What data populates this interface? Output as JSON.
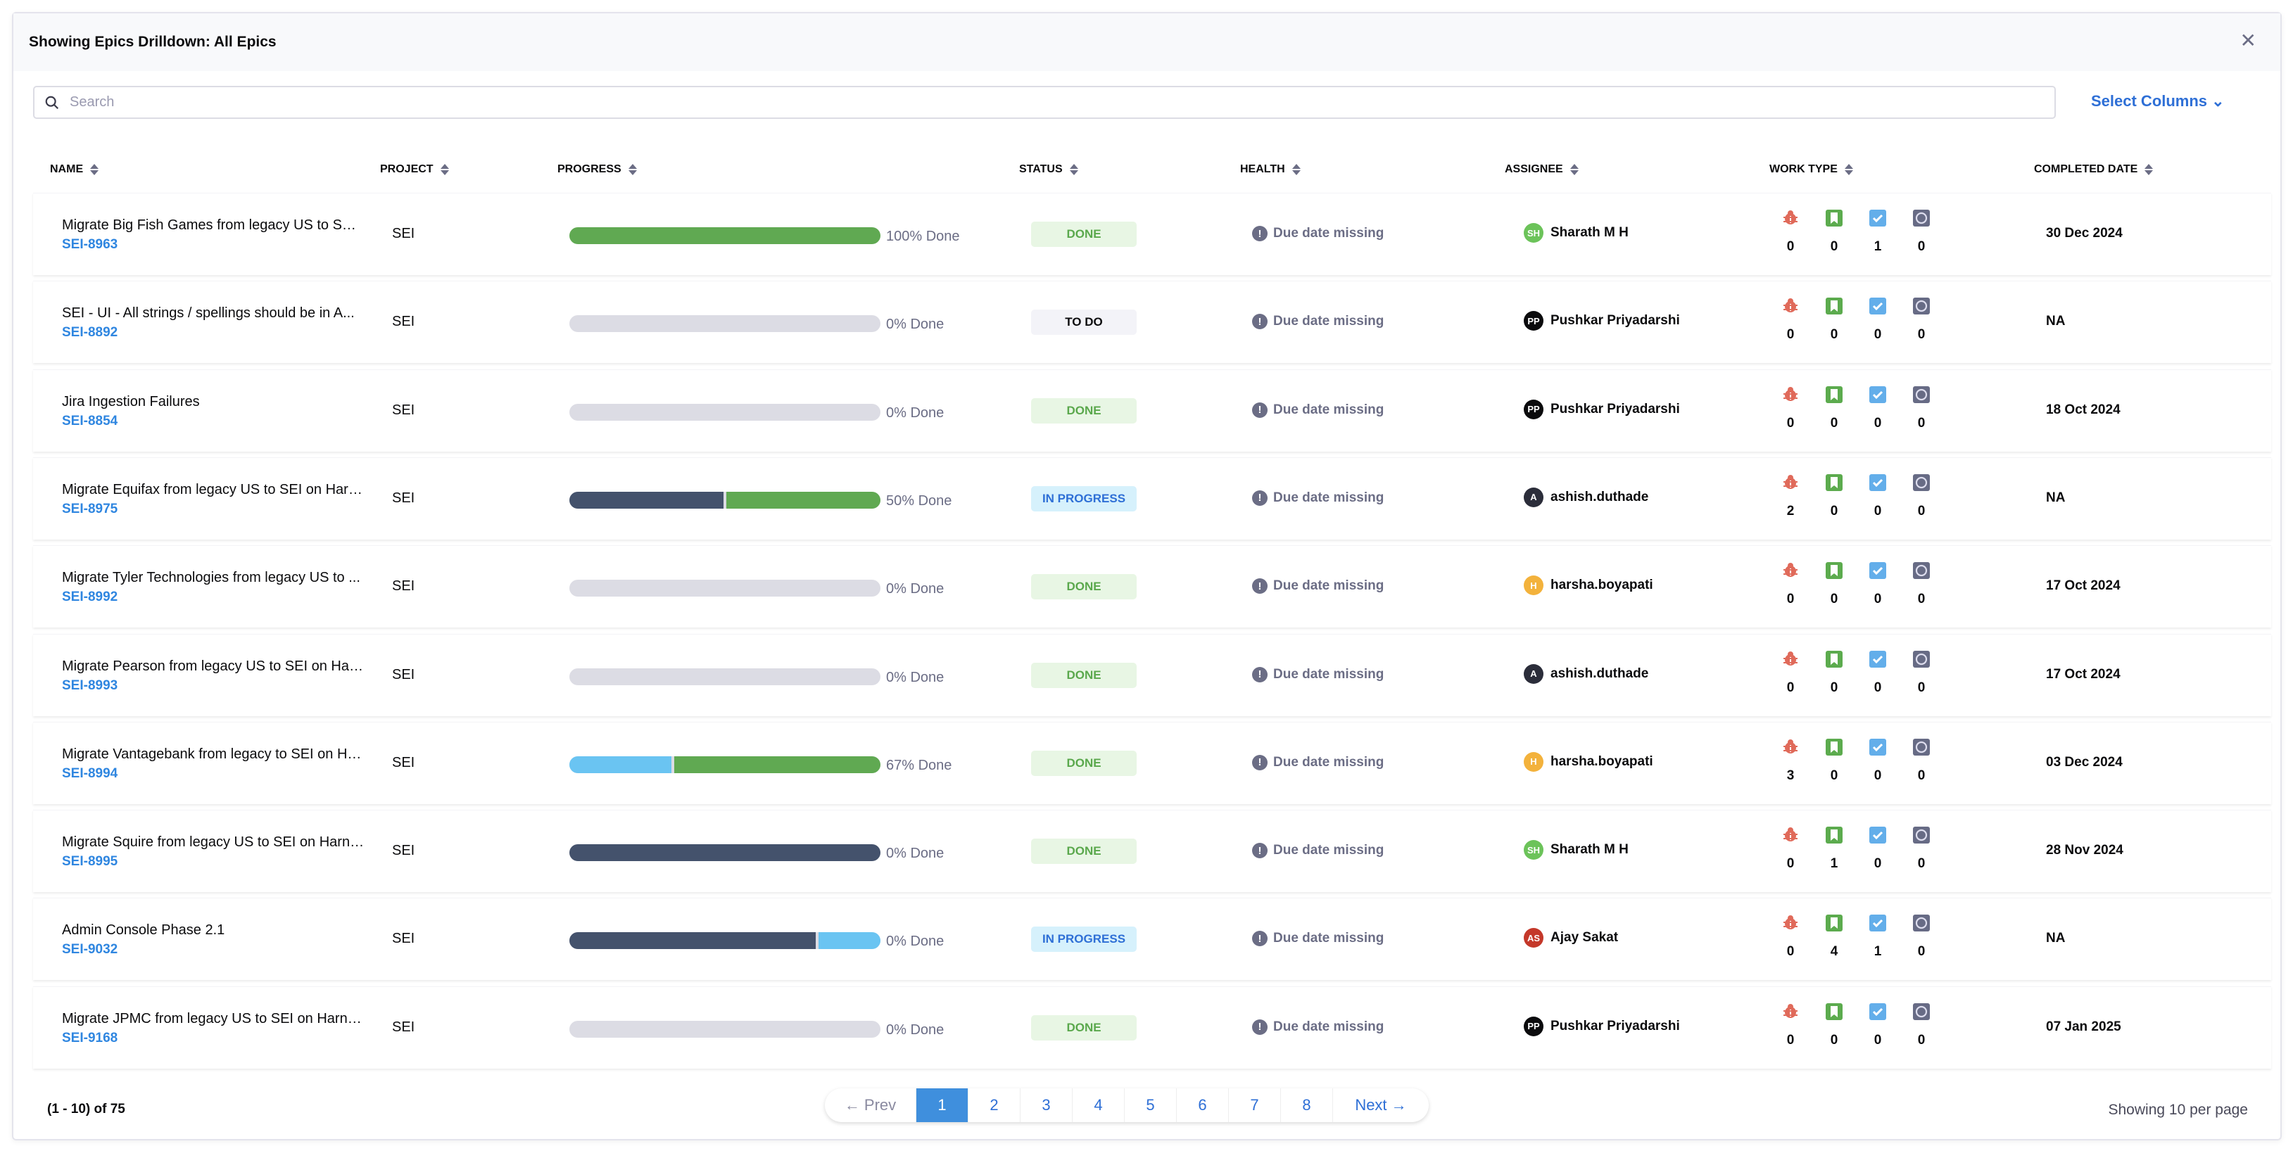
{
  "title": "Showing Epics Drilldown: All Epics",
  "search": {
    "placeholder": "Search",
    "value": ""
  },
  "select_columns": "Select Columns",
  "columns": [
    "NAME",
    "PROJECT",
    "PROGRESS",
    "STATUS",
    "HEALTH",
    "ASSIGNEE",
    "WORK TYPE",
    "COMPLETED DATE"
  ],
  "colors": {
    "done_fill": "#60a952",
    "in_progress_fill": "#6ac4f2",
    "todo_fill": "#44526c",
    "empty": "#dcdce4",
    "link": "#2f86e0",
    "accent": "#3f8fdd"
  },
  "work_type_icons": [
    "bug-icon",
    "story-icon",
    "task-icon",
    "subtask-icon"
  ],
  "rows": [
    {
      "name": "Migrate Big Fish Games from legacy US to SEI ...",
      "key": "SEI-8963",
      "project": "SEI",
      "progress": {
        "todo": 0,
        "in_progress": 0,
        "done": 100
      },
      "progress_label": "100% Done",
      "status": "DONE",
      "health": "Due date missing",
      "assignee": {
        "initials": "SH",
        "name": "Sharath M H",
        "color": "#6cc35a"
      },
      "work_type": [
        "0",
        "0",
        "1",
        "0"
      ],
      "completed": "30 Dec 2024"
    },
    {
      "name": "SEI - UI - All strings / spellings should be in A...",
      "key": "SEI-8892",
      "project": "SEI",
      "progress": {
        "todo": 0,
        "in_progress": 0,
        "done": 0
      },
      "progress_label": "0% Done",
      "status": "TO DO",
      "health": "Due date missing",
      "assignee": {
        "initials": "PP",
        "name": "Pushkar Priyadarshi",
        "color": "#0b0b0d"
      },
      "work_type": [
        "0",
        "0",
        "0",
        "0"
      ],
      "completed": "NA"
    },
    {
      "name": "Jira Ingestion Failures",
      "key": "SEI-8854",
      "project": "SEI",
      "progress": {
        "todo": 0,
        "in_progress": 0,
        "done": 0
      },
      "progress_label": "0% Done",
      "status": "DONE",
      "health": "Due date missing",
      "assignee": {
        "initials": "PP",
        "name": "Pushkar Priyadarshi",
        "color": "#0b0b0d"
      },
      "work_type": [
        "0",
        "0",
        "0",
        "0"
      ],
      "completed": "18 Oct 2024"
    },
    {
      "name": "Migrate Equifax from legacy US to SEI on Harn...",
      "key": "SEI-8975",
      "project": "SEI",
      "progress": {
        "todo": 50,
        "in_progress": 0,
        "done": 50
      },
      "progress_label": "50% Done",
      "status": "IN PROGRESS",
      "health": "Due date missing",
      "assignee": {
        "initials": "A",
        "name": "ashish.duthade",
        "color": "#2b2d3a"
      },
      "work_type": [
        "2",
        "0",
        "0",
        "0"
      ],
      "completed": "NA"
    },
    {
      "name": "Migrate Tyler Technologies from legacy US to ...",
      "key": "SEI-8992",
      "project": "SEI",
      "progress": {
        "todo": 0,
        "in_progress": 0,
        "done": 0
      },
      "progress_label": "0% Done",
      "status": "DONE",
      "health": "Due date missing",
      "assignee": {
        "initials": "H",
        "name": "harsha.boyapati",
        "color": "#f3b23c"
      },
      "work_type": [
        "0",
        "0",
        "0",
        "0"
      ],
      "completed": "17 Oct 2024"
    },
    {
      "name": "Migrate Pearson from legacy US to SEI on Har...",
      "key": "SEI-8993",
      "project": "SEI",
      "progress": {
        "todo": 0,
        "in_progress": 0,
        "done": 0
      },
      "progress_label": "0% Done",
      "status": "DONE",
      "health": "Due date missing",
      "assignee": {
        "initials": "A",
        "name": "ashish.duthade",
        "color": "#2b2d3a"
      },
      "work_type": [
        "0",
        "0",
        "0",
        "0"
      ],
      "completed": "17 Oct 2024"
    },
    {
      "name": "Migrate Vantagebank from legacy to SEI on Ha...",
      "key": "SEI-8994",
      "project": "SEI",
      "progress": {
        "todo": 0,
        "in_progress": 33,
        "done": 67
      },
      "progress_label": "67% Done",
      "status": "DONE",
      "health": "Due date missing",
      "assignee": {
        "initials": "H",
        "name": "harsha.boyapati",
        "color": "#f3b23c"
      },
      "work_type": [
        "3",
        "0",
        "0",
        "0"
      ],
      "completed": "03 Dec 2024"
    },
    {
      "name": "Migrate Squire from legacy US to SEI on Harne...",
      "key": "SEI-8995",
      "project": "SEI",
      "progress": {
        "todo": 100,
        "in_progress": 0,
        "done": 0
      },
      "progress_label": "0% Done",
      "status": "DONE",
      "health": "Due date missing",
      "assignee": {
        "initials": "SH",
        "name": "Sharath M H",
        "color": "#6cc35a"
      },
      "work_type": [
        "0",
        "1",
        "0",
        "0"
      ],
      "completed": "28 Nov 2024"
    },
    {
      "name": "Admin Console Phase 2.1",
      "key": "SEI-9032",
      "project": "SEI",
      "progress": {
        "todo": 80,
        "in_progress": 20,
        "done": 0
      },
      "progress_label": "0% Done",
      "status": "IN PROGRESS",
      "health": "Due date missing",
      "assignee": {
        "initials": "AS",
        "name": "Ajay Sakat",
        "color": "#c4382a"
      },
      "work_type": [
        "0",
        "4",
        "1",
        "0"
      ],
      "completed": "NA"
    },
    {
      "name": "Migrate JPMC from legacy US to SEI on Harne...",
      "key": "SEI-9168",
      "project": "SEI",
      "progress": {
        "todo": 0,
        "in_progress": 0,
        "done": 0
      },
      "progress_label": "0% Done",
      "status": "DONE",
      "health": "Due date missing",
      "assignee": {
        "initials": "PP",
        "name": "Pushkar Priyadarshi",
        "color": "#0b0b0d"
      },
      "work_type": [
        "0",
        "0",
        "0",
        "0"
      ],
      "completed": "07 Jan 2025"
    }
  ],
  "footer": {
    "count": "(1 - 10) of 75",
    "prev": "← Prev",
    "next": "Next →",
    "pages": [
      "1",
      "2",
      "3",
      "4",
      "5",
      "6",
      "7",
      "8"
    ],
    "current": "1",
    "per_page": "Showing 10 per page"
  }
}
